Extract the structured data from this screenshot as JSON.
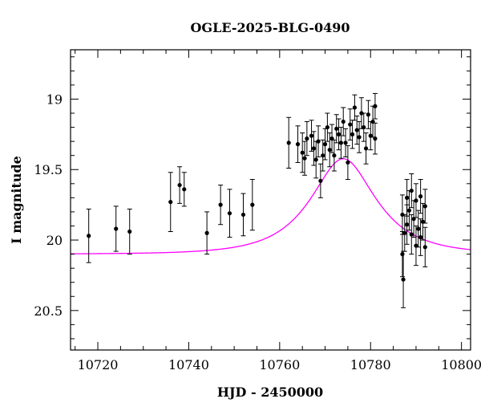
{
  "chart_data": {
    "type": "scatter",
    "title": "OGLE-2025-BLG-0490",
    "xlabel": "HJD - 2450000",
    "ylabel": "I magnitude",
    "xlim": [
      10714,
      10802
    ],
    "ylim": [
      20.78,
      18.65
    ],
    "y_inverted": true,
    "x_ticks": [
      10720,
      10740,
      10760,
      10780,
      10800
    ],
    "y_ticks": [
      19,
      19.5,
      20,
      20.5
    ],
    "x_tick_labels": [
      "10720",
      "10740",
      "10760",
      "10780",
      "10800"
    ],
    "y_tick_labels": [
      "19",
      "19.5",
      "20",
      "20.5"
    ],
    "grid": false,
    "legend": "none",
    "colors": {
      "points": "#000000",
      "model": "#ff00ff",
      "axes": "#000000"
    },
    "series": [
      {
        "kind": "points-with-errorbars",
        "points": [
          [
            10718,
            19.97,
            0.19
          ],
          [
            10724,
            19.92,
            0.16
          ],
          [
            10727,
            19.94,
            0.16
          ],
          [
            10736,
            19.73,
            0.21
          ],
          [
            10738,
            19.61,
            0.13
          ],
          [
            10739,
            19.64,
            0.12
          ],
          [
            10744,
            19.95,
            0.15
          ],
          [
            10747,
            19.75,
            0.14
          ],
          [
            10749,
            19.81,
            0.17
          ],
          [
            10752,
            19.82,
            0.15
          ],
          [
            10754,
            19.75,
            0.18
          ],
          [
            10762,
            19.31,
            0.18
          ],
          [
            10764,
            19.32,
            0.13
          ],
          [
            10765,
            19.38,
            0.14
          ],
          [
            10765.5,
            19.42,
            0.12
          ],
          [
            10766,
            19.28,
            0.12
          ],
          [
            10767,
            19.26,
            0.11
          ],
          [
            10767.5,
            19.35,
            0.12
          ],
          [
            10768,
            19.43,
            0.13
          ],
          [
            10768.5,
            19.3,
            0.11
          ],
          [
            10769,
            19.58,
            0.12
          ],
          [
            10769.5,
            19.4,
            0.11
          ],
          [
            10770,
            19.32,
            0.11
          ],
          [
            10770.5,
            19.2,
            0.1
          ],
          [
            10771,
            19.36,
            0.12
          ],
          [
            10771.5,
            19.28,
            0.1
          ],
          [
            10772,
            19.4,
            0.11
          ],
          [
            10772.5,
            19.21,
            0.1
          ],
          [
            10773,
            19.25,
            0.11
          ],
          [
            10773.5,
            19.31,
            0.11
          ],
          [
            10774,
            19.16,
            0.1
          ],
          [
            10774.5,
            19.31,
            0.1
          ],
          [
            10775,
            19.45,
            0.12
          ],
          [
            10775.5,
            19.18,
            0.11
          ],
          [
            10776,
            19.25,
            0.1
          ],
          [
            10776.5,
            19.06,
            0.09
          ],
          [
            10777,
            19.22,
            0.1
          ],
          [
            10777.5,
            19.27,
            0.11
          ],
          [
            10778,
            19.1,
            0.11
          ],
          [
            10778.5,
            19.2,
            0.1
          ],
          [
            10779,
            19.35,
            0.11
          ],
          [
            10779.5,
            19.11,
            0.1
          ],
          [
            10780,
            19.26,
            0.1
          ],
          [
            10780.5,
            19.16,
            0.11
          ],
          [
            10781,
            19.05,
            0.09
          ],
          [
            10781,
            19.28,
            0.11
          ],
          [
            10787,
            19.82,
            0.14
          ],
          [
            10787,
            20.1,
            0.16
          ],
          [
            10787.2,
            20.28,
            0.2
          ],
          [
            10787.5,
            19.95,
            0.13
          ],
          [
            10788,
            19.7,
            0.13
          ],
          [
            10788,
            19.89,
            0.14
          ],
          [
            10788.5,
            19.79,
            0.14
          ],
          [
            10789,
            19.65,
            0.12
          ],
          [
            10789,
            19.96,
            0.14
          ],
          [
            10789.5,
            19.85,
            0.13
          ],
          [
            10790,
            19.72,
            0.12
          ],
          [
            10790,
            20.04,
            0.14
          ],
          [
            10790.5,
            19.92,
            0.13
          ],
          [
            10791,
            19.69,
            0.12
          ],
          [
            10791,
            19.98,
            0.13
          ],
          [
            10791.5,
            19.87,
            0.13
          ],
          [
            10792,
            19.76,
            0.12
          ],
          [
            10792,
            20.05,
            0.14
          ]
        ]
      },
      {
        "kind": "model-curve",
        "u0": 0.55,
        "t0": 10774,
        "tE": 12,
        "fs": 0.85,
        "m_base": 20.1
      }
    ]
  }
}
